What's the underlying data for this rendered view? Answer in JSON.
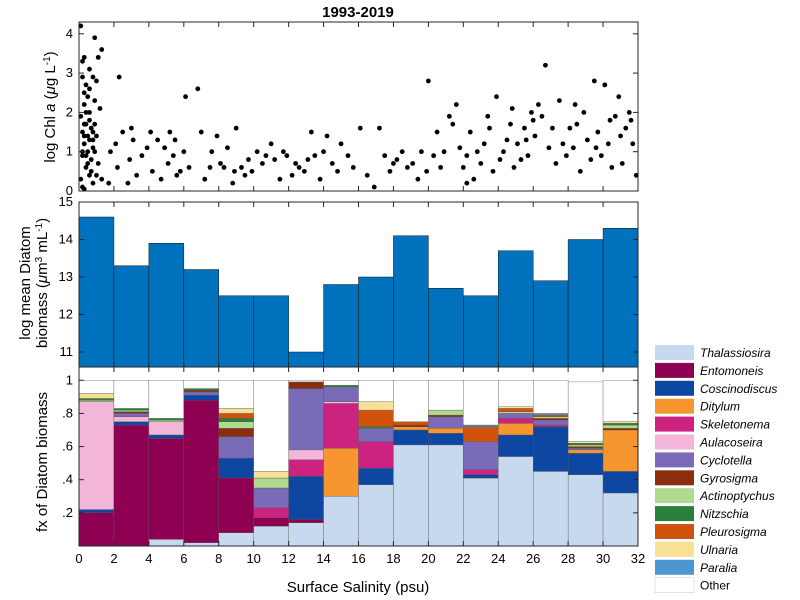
{
  "chart_data": [
    {
      "panel": "top",
      "type": "scatter",
      "title": "1993-2019",
      "ylabel": "log Chl a (μg L⁻¹)",
      "xlim": [
        0,
        32
      ],
      "ylim": [
        0,
        4.3
      ],
      "yticks": [
        "0",
        "1",
        "2",
        "3",
        "4"
      ],
      "yticks_values": [
        0,
        1,
        2,
        3,
        4
      ],
      "points": [
        [
          0.1,
          4.2
        ],
        [
          0.2,
          3.3
        ],
        [
          0.2,
          2.9
        ],
        [
          0.3,
          2.5
        ],
        [
          0.3,
          2.2
        ],
        [
          0.1,
          1.9
        ],
        [
          0.4,
          1.7
        ],
        [
          0.2,
          1.5
        ],
        [
          0.3,
          1.2
        ],
        [
          0.2,
          0.9
        ],
        [
          0.4,
          0.6
        ],
        [
          0.1,
          0.3
        ],
        [
          0.2,
          0.1
        ],
        [
          0.5,
          1.4
        ],
        [
          0.5,
          1.0
        ],
        [
          0.6,
          2.0
        ],
        [
          0.7,
          1.6
        ],
        [
          0.8,
          1.3
        ],
        [
          0.9,
          2.3
        ],
        [
          0.7,
          0.8
        ],
        [
          0.3,
          3.4
        ],
        [
          0.4,
          2.7
        ],
        [
          0.6,
          3.1
        ],
        [
          0.8,
          2.9
        ],
        [
          0.9,
          3.9
        ],
        [
          1.3,
          3.6
        ],
        [
          1.1,
          3.4
        ],
        [
          1.0,
          2.8
        ],
        [
          1.2,
          2.1
        ],
        [
          0.9,
          1.7
        ],
        [
          0.8,
          1.1
        ],
        [
          1.0,
          1.4
        ],
        [
          0.6,
          0.4
        ],
        [
          0.8,
          0.2
        ],
        [
          1.1,
          0.7
        ],
        [
          0.3,
          0.05
        ],
        [
          0.2,
          1.0
        ],
        [
          0.3,
          1.7
        ],
        [
          0.5,
          2.4
        ],
        [
          0.6,
          1.8
        ],
        [
          1.3,
          0.3
        ],
        [
          1.7,
          0.2
        ],
        [
          1.8,
          1.0
        ],
        [
          2.1,
          1.2
        ],
        [
          2.3,
          2.9
        ],
        [
          2.2,
          0.6
        ],
        [
          2.5,
          1.5
        ],
        [
          2.8,
          0.2
        ],
        [
          2.9,
          0.8
        ],
        [
          3.1,
          1.3
        ],
        [
          3.3,
          0.4
        ],
        [
          3.0,
          1.6
        ],
        [
          3.6,
          0.9
        ],
        [
          3.9,
          1.1
        ],
        [
          4.1,
          1.5
        ],
        [
          4.2,
          0.5
        ],
        [
          4.5,
          1.3
        ],
        [
          4.7,
          0.3
        ],
        [
          4.9,
          1.1
        ],
        [
          5.1,
          0.7
        ],
        [
          5.2,
          1.5
        ],
        [
          5.4,
          0.9
        ],
        [
          5.5,
          1.3
        ],
        [
          5.6,
          0.4
        ],
        [
          5.8,
          0.5
        ],
        [
          6.0,
          1.0
        ],
        [
          6.1,
          2.4
        ],
        [
          6.3,
          0.6
        ],
        [
          6.8,
          2.6
        ],
        [
          7.0,
          1.5
        ],
        [
          7.2,
          0.3
        ],
        [
          7.5,
          0.6
        ],
        [
          7.6,
          1.0
        ],
        [
          7.9,
          1.4
        ],
        [
          8.1,
          0.7
        ],
        [
          8.3,
          0.6
        ],
        [
          8.5,
          1.1
        ],
        [
          8.8,
          0.2
        ],
        [
          8.9,
          0.5
        ],
        [
          9.0,
          1.6
        ],
        [
          9.3,
          0.6
        ],
        [
          9.5,
          0.4
        ],
        [
          9.7,
          0.8
        ],
        [
          9.9,
          0.5
        ],
        [
          10.2,
          1.0
        ],
        [
          10.5,
          0.7
        ],
        [
          10.7,
          0.9
        ],
        [
          11.0,
          1.2
        ],
        [
          11.2,
          0.8
        ],
        [
          11.5,
          0.3
        ],
        [
          11.7,
          1.0
        ],
        [
          11.9,
          0.9
        ],
        [
          12.2,
          0.4
        ],
        [
          12.4,
          0.7
        ],
        [
          12.6,
          0.6
        ],
        [
          12.9,
          0.5
        ],
        [
          13.1,
          0.8
        ],
        [
          13.3,
          1.5
        ],
        [
          13.5,
          0.9
        ],
        [
          13.8,
          0.3
        ],
        [
          14.0,
          1.0
        ],
        [
          14.2,
          1.4
        ],
        [
          14.5,
          0.7
        ],
        [
          14.8,
          0.5
        ],
        [
          15.0,
          1.2
        ],
        [
          15.4,
          0.9
        ],
        [
          15.7,
          0.6
        ],
        [
          16.1,
          1.6
        ],
        [
          16.5,
          0.4
        ],
        [
          16.9,
          0.1
        ],
        [
          17.2,
          1.6
        ],
        [
          17.5,
          0.9
        ],
        [
          17.8,
          0.5
        ],
        [
          18.0,
          0.7
        ],
        [
          18.2,
          0.8
        ],
        [
          18.5,
          1.0
        ],
        [
          18.8,
          0.6
        ],
        [
          19.1,
          0.7
        ],
        [
          19.4,
          0.3
        ],
        [
          19.6,
          1.0
        ],
        [
          19.9,
          0.5
        ],
        [
          20.0,
          2.8
        ],
        [
          20.3,
          0.9
        ],
        [
          20.5,
          1.5
        ],
        [
          20.7,
          0.6
        ],
        [
          20.9,
          1.0
        ],
        [
          21.2,
          1.9
        ],
        [
          21.4,
          1.7
        ],
        [
          21.6,
          2.2
        ],
        [
          21.8,
          1.1
        ],
        [
          22.0,
          0.6
        ],
        [
          22.2,
          0.9
        ],
        [
          22.4,
          1.5
        ],
        [
          22.6,
          0.3
        ],
        [
          22.8,
          1.0
        ],
        [
          23.0,
          0.7
        ],
        [
          23.2,
          1.2
        ],
        [
          23.5,
          1.6
        ],
        [
          23.7,
          0.5
        ],
        [
          23.9,
          2.4
        ],
        [
          24.1,
          0.8
        ],
        [
          24.3,
          1.0
        ],
        [
          24.5,
          1.3
        ],
        [
          24.7,
          1.7
        ],
        [
          24.9,
          0.6
        ],
        [
          25.1,
          1.2
        ],
        [
          25.3,
          0.8
        ],
        [
          25.5,
          1.6
        ],
        [
          25.7,
          0.9
        ],
        [
          25.9,
          2.0
        ],
        [
          26.1,
          1.4
        ],
        [
          26.3,
          2.2
        ],
        [
          26.5,
          1.9
        ],
        [
          26.7,
          3.2
        ],
        [
          26.9,
          1.1
        ],
        [
          27.1,
          1.6
        ],
        [
          27.3,
          0.7
        ],
        [
          27.5,
          2.3
        ],
        [
          27.7,
          1.2
        ],
        [
          27.9,
          0.9
        ],
        [
          28.1,
          1.6
        ],
        [
          28.3,
          1.1
        ],
        [
          28.5,
          1.7
        ],
        [
          28.7,
          0.5
        ],
        [
          28.9,
          2.0
        ],
        [
          29.1,
          1.3
        ],
        [
          29.3,
          0.8
        ],
        [
          29.5,
          2.8
        ],
        [
          29.7,
          1.5
        ],
        [
          29.9,
          0.9
        ],
        [
          30.1,
          2.7
        ],
        [
          30.3,
          1.2
        ],
        [
          30.5,
          0.6
        ],
        [
          30.7,
          1.9
        ],
        [
          30.9,
          2.4
        ],
        [
          31.1,
          0.7
        ],
        [
          31.3,
          1.6
        ],
        [
          31.5,
          2.0
        ],
        [
          31.7,
          1.2
        ],
        [
          31.9,
          0.4
        ],
        [
          0.4,
          0.9
        ],
        [
          0.5,
          0.7
        ],
        [
          0.6,
          1.3
        ],
        [
          0.7,
          0.5
        ],
        [
          0.9,
          1.0
        ],
        [
          1.0,
          0.4
        ],
        [
          0.8,
          1.5
        ],
        [
          0.4,
          2.0
        ],
        [
          0.6,
          2.6
        ],
        [
          0.3,
          1.4
        ],
        [
          26.0,
          1.8
        ],
        [
          25.6,
          1.3
        ],
        [
          28.4,
          2.2
        ],
        [
          29.6,
          1.1
        ],
        [
          30.4,
          1.8
        ],
        [
          31.0,
          1.4
        ],
        [
          31.6,
          1.8
        ],
        [
          24.8,
          2.1
        ],
        [
          23.4,
          1.9
        ],
        [
          22.2,
          0.2
        ]
      ]
    },
    {
      "panel": "middle",
      "type": "bar",
      "ylabel": "log mean Diatom biomass (μm³ mL⁻¹)",
      "xlim": [
        0,
        32
      ],
      "ylim": [
        10.6,
        15
      ],
      "yticks": [
        "11",
        "12",
        "13",
        "14",
        "15"
      ],
      "yticks_values": [
        11,
        12,
        13,
        14,
        15
      ],
      "bin_edges": [
        0,
        2,
        4,
        6,
        8,
        10,
        12,
        14,
        16,
        18,
        20,
        22,
        24,
        26,
        28,
        30,
        32
      ],
      "values": [
        14.6,
        13.3,
        13.9,
        13.2,
        12.5,
        12.5,
        11.0,
        12.8,
        13.0,
        14.1,
        12.7,
        12.5,
        13.7,
        12.9,
        14.0,
        14.3
      ],
      "color": "#0072BD"
    },
    {
      "panel": "bottom",
      "type": "bar",
      "stacked": true,
      "ylabel": "fx of Diatom biomass",
      "xlabel": "Surface Salinity (psu)",
      "xlim": [
        0,
        32
      ],
      "ylim": [
        0,
        1.0
      ],
      "yticks": [
        ".2",
        ".4",
        ".6",
        ".8",
        "1"
      ],
      "yticks_values": [
        0.2,
        0.4,
        0.6,
        0.8,
        1.0
      ],
      "xticks": [
        "0",
        "2",
        "4",
        "6",
        "8",
        "10",
        "12",
        "14",
        "16",
        "18",
        "20",
        "22",
        "24",
        "26",
        "28",
        "30",
        "32"
      ],
      "xticks_values": [
        0,
        2,
        4,
        6,
        8,
        10,
        12,
        14,
        16,
        18,
        20,
        22,
        24,
        26,
        28,
        30,
        32
      ],
      "bin_edges": [
        0,
        2,
        4,
        6,
        8,
        10,
        12,
        14,
        16,
        18,
        20,
        22,
        24,
        26,
        28,
        30,
        32
      ],
      "series": [
        {
          "name": "Thalassiosira",
          "color": "#C6D9EE",
          "values": [
            0.0,
            0.0,
            0.04,
            0.02,
            0.08,
            0.12,
            0.14,
            0.3,
            0.37,
            0.61,
            0.61,
            0.41,
            0.54,
            0.45,
            0.43,
            0.32
          ]
        },
        {
          "name": "Entomoneis",
          "color": "#8E0152",
          "values": [
            0.2,
            0.73,
            0.61,
            0.86,
            0.33,
            0.05,
            0.02,
            0.0,
            0.0,
            0.0,
            0.0,
            0.0,
            0.0,
            0.0,
            0.0,
            0.0
          ]
        },
        {
          "name": "Coscinodiscus",
          "color": "#0D47A1",
          "values": [
            0.02,
            0.02,
            0.02,
            0.03,
            0.12,
            0.0,
            0.26,
            0.0,
            0.1,
            0.09,
            0.07,
            0.02,
            0.13,
            0.27,
            0.13,
            0.13
          ]
        },
        {
          "name": "Ditylum",
          "color": "#F7962F",
          "values": [
            0.0,
            0.0,
            0.0,
            0.0,
            0.0,
            0.0,
            0.0,
            0.29,
            0.0,
            0.02,
            0.03,
            0.0,
            0.07,
            0.0,
            0.02,
            0.25
          ]
        },
        {
          "name": "Skeletonema",
          "color": "#CC2381",
          "values": [
            0.0,
            0.0,
            0.0,
            0.0,
            0.0,
            0.06,
            0.1,
            0.27,
            0.16,
            0.0,
            0.0,
            0.03,
            0.03,
            0.01,
            0.0,
            0.0
          ]
        },
        {
          "name": "Aulacoseira",
          "color": "#F4B6D8",
          "values": [
            0.65,
            0.03,
            0.08,
            0.0,
            0.0,
            0.0,
            0.06,
            0.01,
            0.0,
            0.0,
            0.0,
            0.0,
            0.0,
            0.0,
            0.0,
            0.0
          ]
        },
        {
          "name": "Cyclotella",
          "color": "#7A6BB8",
          "values": [
            0.0,
            0.02,
            0.0,
            0.02,
            0.13,
            0.12,
            0.37,
            0.09,
            0.08,
            0.0,
            0.07,
            0.17,
            0.03,
            0.03,
            0.01,
            0.0
          ]
        },
        {
          "name": "Gyrosigma",
          "color": "#8B2E0E",
          "values": [
            0.0,
            0.01,
            0.0,
            0.01,
            0.05,
            0.0,
            0.04,
            0.0,
            0.0,
            0.01,
            0.01,
            0.0,
            0.0,
            0.01,
            0.01,
            0.01
          ]
        },
        {
          "name": "Actinoptychus",
          "color": "#AEDB8F",
          "values": [
            0.01,
            0.01,
            0.01,
            0.0,
            0.04,
            0.06,
            0.0,
            0.0,
            0.0,
            0.0,
            0.03,
            0.0,
            0.01,
            0.01,
            0.01,
            0.02
          ]
        },
        {
          "name": "Nitzschia",
          "color": "#2A7F3A",
          "values": [
            0.01,
            0.01,
            0.01,
            0.01,
            0.02,
            0.0,
            0.0,
            0.01,
            0.01,
            0.0,
            0.0,
            0.0,
            0.0,
            0.0,
            0.01,
            0.01
          ]
        },
        {
          "name": "Pleurosigma",
          "color": "#D2510B",
          "values": [
            0.0,
            0.0,
            0.0,
            0.0,
            0.03,
            0.0,
            0.0,
            0.0,
            0.1,
            0.02,
            0.0,
            0.09,
            0.02,
            0.01,
            0.0,
            0.0
          ]
        },
        {
          "name": "Ulnaria",
          "color": "#FAE096",
          "values": [
            0.03,
            0.0,
            0.0,
            0.0,
            0.03,
            0.04,
            0.0,
            0.0,
            0.05,
            0.0,
            0.0,
            0.0,
            0.01,
            0.0,
            0.01,
            0.01
          ]
        },
        {
          "name": "Paralia",
          "color": "#4C97CF",
          "values": [
            0.0,
            0.0,
            0.0,
            0.0,
            0.0,
            0.0,
            0.0,
            0.0,
            0.0,
            0.0,
            0.0,
            0.01,
            0.0,
            0.01,
            0.0,
            0.0
          ]
        },
        {
          "name": "Other",
          "color": "#FFFFFF",
          "values": [
            0.08,
            0.17,
            0.23,
            0.05,
            0.17,
            0.55,
            0.01,
            0.03,
            0.13,
            0.25,
            0.18,
            0.27,
            0.16,
            0.2,
            0.36,
            0.25
          ]
        }
      ]
    }
  ]
}
